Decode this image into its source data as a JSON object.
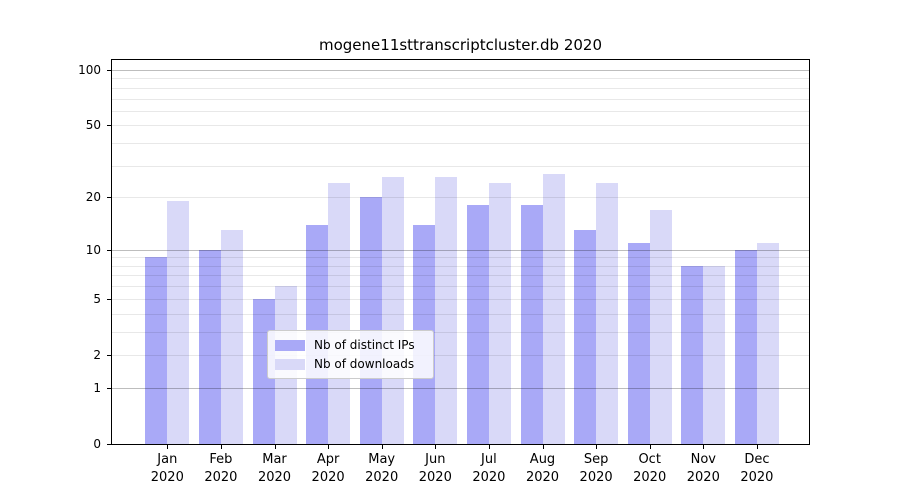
{
  "figure_title": "mogene11sttranscriptcluster.db 2020",
  "chart_data": {
    "type": "bar",
    "title": "mogene11sttranscriptcluster.db 2020",
    "x_categories": [
      {
        "month": "Jan",
        "year": "2020"
      },
      {
        "month": "Feb",
        "year": "2020"
      },
      {
        "month": "Mar",
        "year": "2020"
      },
      {
        "month": "Apr",
        "year": "2020"
      },
      {
        "month": "May",
        "year": "2020"
      },
      {
        "month": "Jun",
        "year": "2020"
      },
      {
        "month": "Jul",
        "year": "2020"
      },
      {
        "month": "Aug",
        "year": "2020"
      },
      {
        "month": "Sep",
        "year": "2020"
      },
      {
        "month": "Oct",
        "year": "2020"
      },
      {
        "month": "Nov",
        "year": "2020"
      },
      {
        "month": "Dec",
        "year": "2020"
      }
    ],
    "series": [
      {
        "name": "Nb of distinct IPs",
        "color": "#a9a9f7",
        "values": [
          9,
          10,
          5,
          14,
          20,
          14,
          18,
          18,
          13,
          11,
          8,
          10
        ]
      },
      {
        "name": "Nb of downloads",
        "color": "#d9d9f8",
        "values": [
          19,
          13,
          6,
          24,
          26,
          26,
          24,
          27,
          24,
          17,
          8,
          11
        ]
      }
    ],
    "y_axis": {
      "scale": "log1p",
      "labeled_ticks": [
        0,
        1,
        2,
        5,
        10,
        20,
        50,
        100
      ],
      "major_gridlines": [
        1,
        10,
        100
      ],
      "minor_gridlines": [
        2,
        3,
        4,
        5,
        6,
        7,
        8,
        9,
        20,
        30,
        40,
        50,
        60,
        70,
        80,
        90
      ],
      "ylim": [
        0,
        113
      ]
    },
    "legend": {
      "position": "inside-bottom-center",
      "entries": [
        "Nb of distinct IPs",
        "Nb of downloads"
      ]
    },
    "colors": {
      "distinct_ips_bar": "#a9a9f7",
      "downloads_bar": "#d9d9f8",
      "axis": "#000000",
      "background": "#ffffff"
    }
  }
}
